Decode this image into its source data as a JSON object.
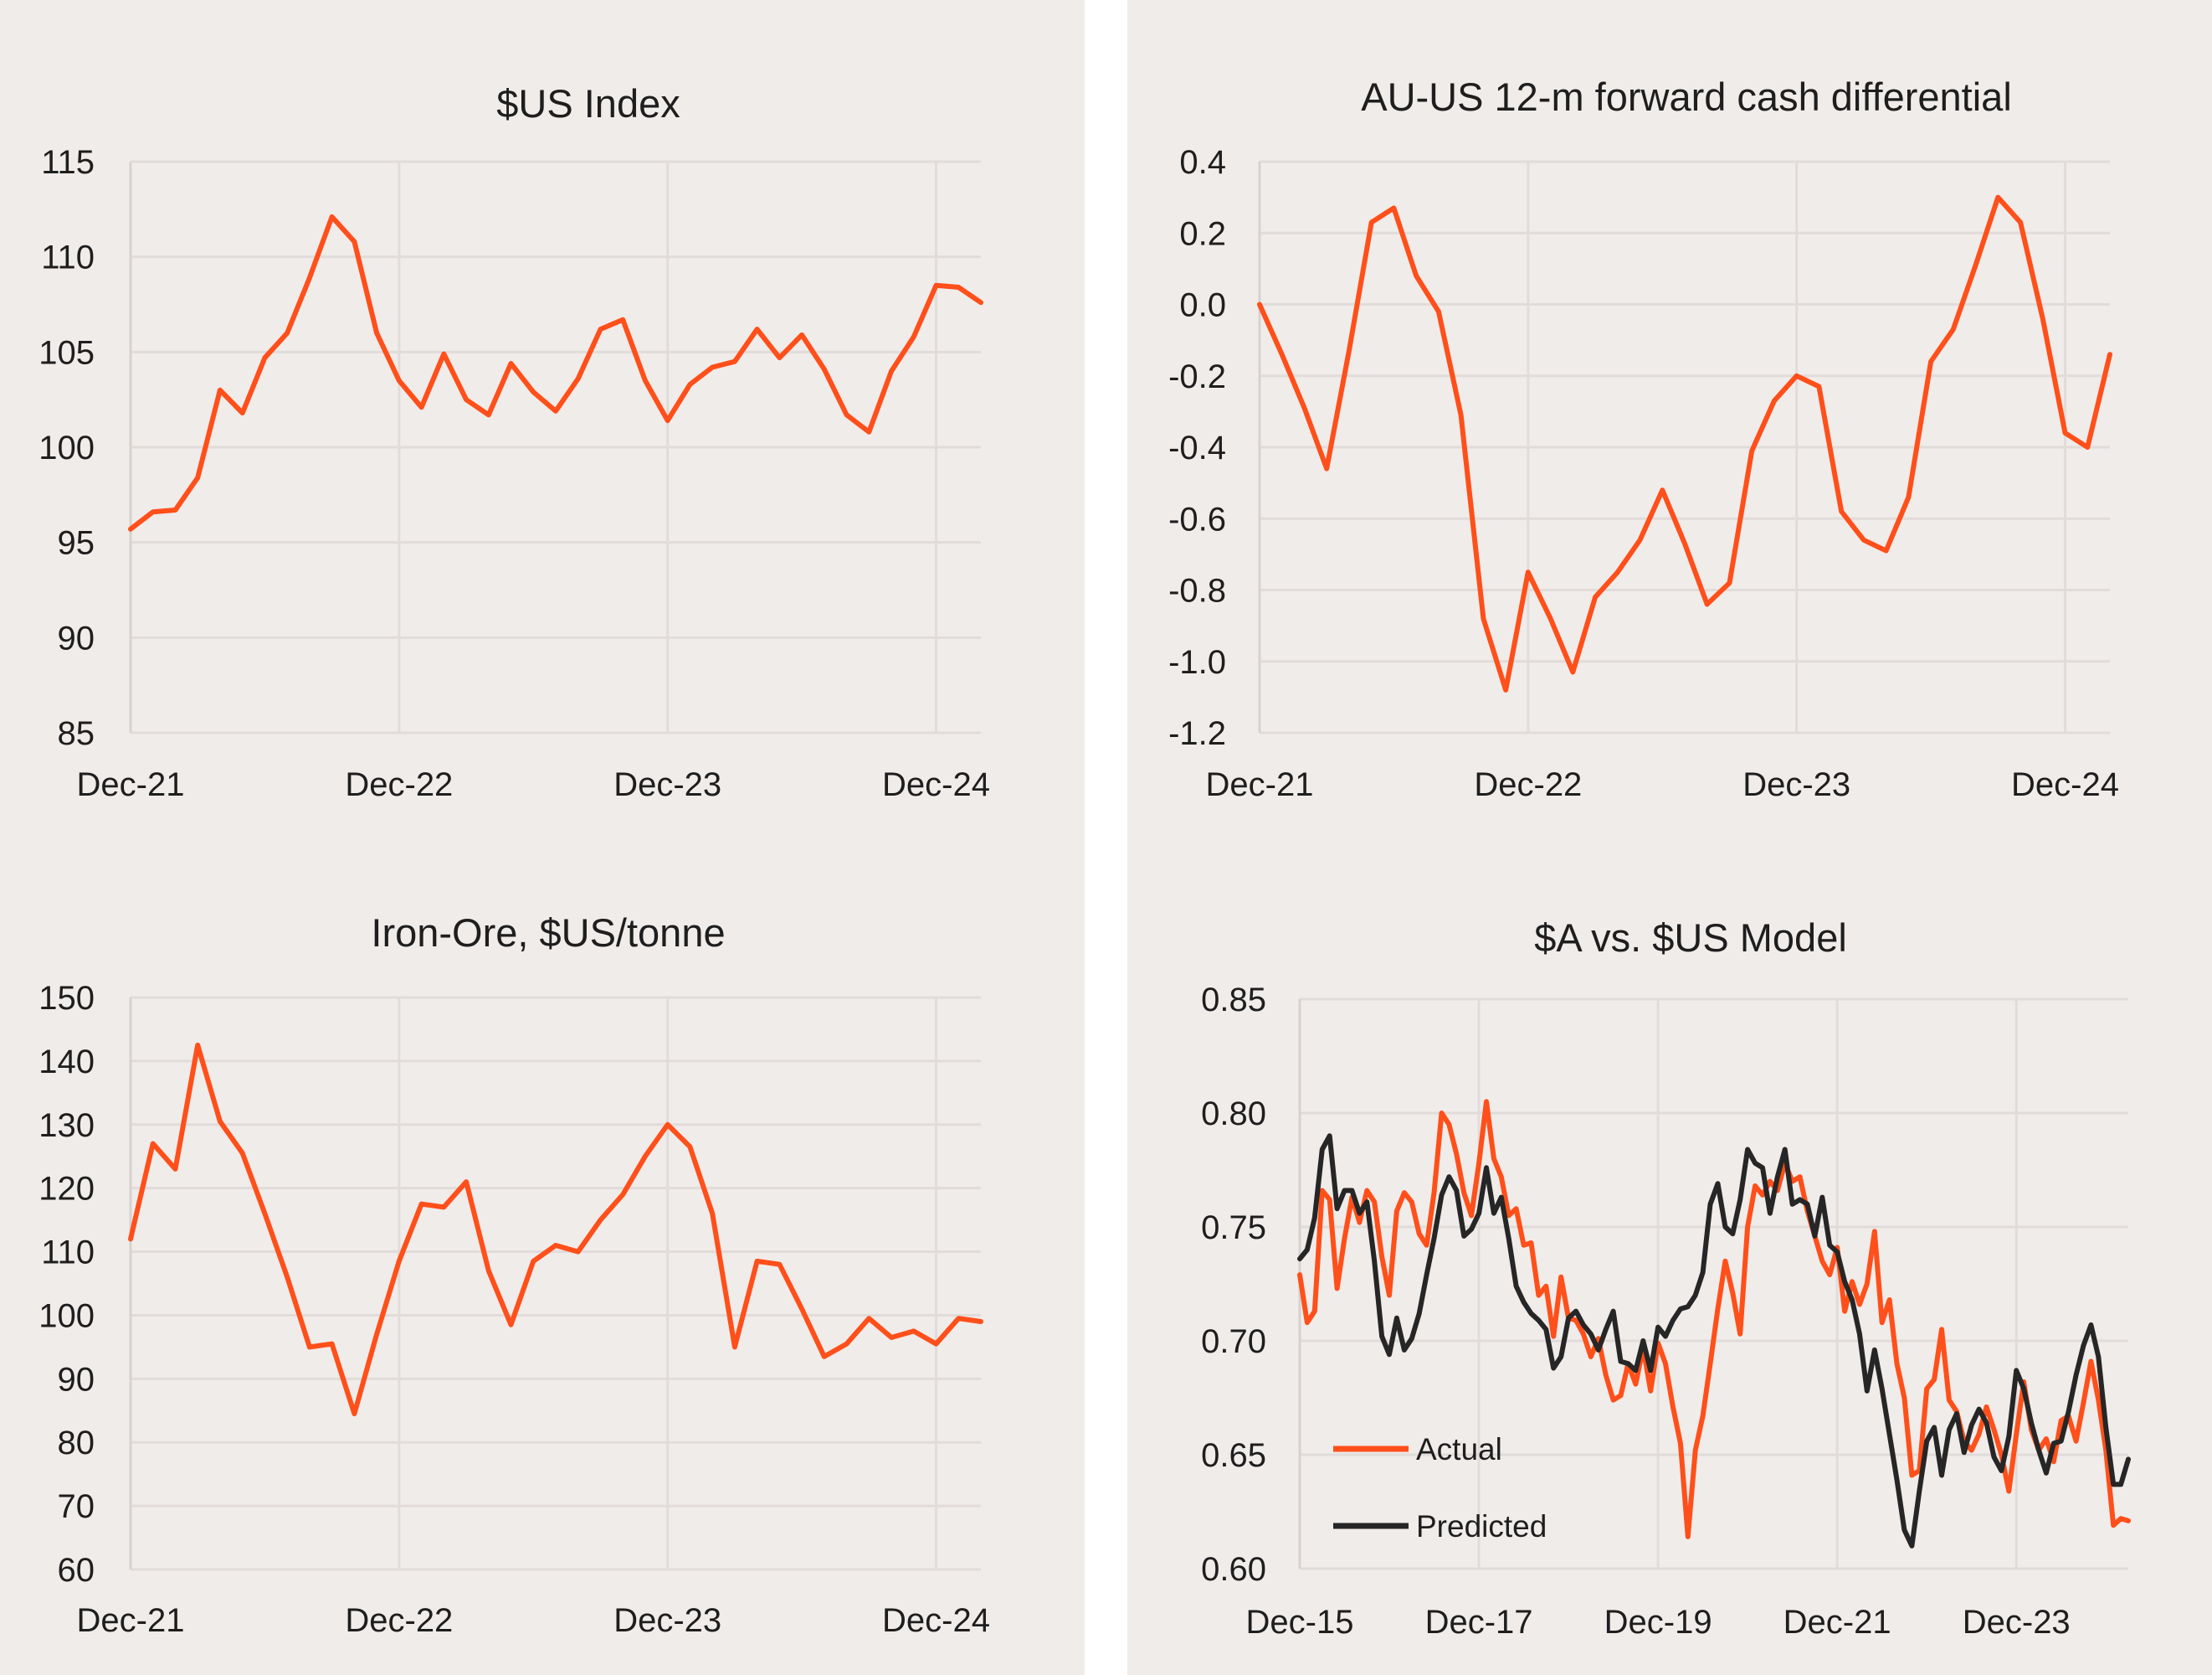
{
  "charts": [
    {
      "id": "usd-index",
      "chart_data": {
        "type": "line",
        "title": "$US Index",
        "xlabel": "",
        "ylabel": "",
        "ylim": [
          85,
          115
        ],
        "yticks": [
          "115",
          "110",
          "105",
          "100",
          "95",
          "90",
          "85"
        ],
        "xticks": [
          "Dec-21",
          "Dec-22",
          "Dec-23",
          "Dec-24"
        ],
        "x_period": "monthly, Dec-21 to Feb-25",
        "grid": true,
        "series": [
          {
            "color": "#ff4f1a",
            "values": [
              95.7,
              96.6,
              96.7,
              98.4,
              103.0,
              101.8,
              104.7,
              106.0,
              108.9,
              112.1,
              110.8,
              106.0,
              103.5,
              102.1,
              104.9,
              102.5,
              101.7,
              104.4,
              102.9,
              101.9,
              103.6,
              106.2,
              106.7,
              103.5,
              101.4,
              103.3,
              104.2,
              104.5,
              106.2,
              104.7,
              105.9,
              104.1,
              101.7,
              100.8,
              104.0,
              105.8,
              108.5,
              108.4,
              107.6
            ]
          }
        ]
      }
    },
    {
      "id": "au-us-differential",
      "chart_data": {
        "type": "line",
        "title": "AU-US 12-m forward cash differential",
        "xlabel": "",
        "ylabel": "",
        "ylim": [
          -1.2,
          0.4
        ],
        "yticks": [
          "0.4",
          "0.2",
          "0.0",
          "-0.2",
          "-0.4",
          "-0.6",
          "-0.8",
          "-1.0",
          "-1.2"
        ],
        "xticks": [
          "Dec-21",
          "Dec-22",
          "Dec-23",
          "Dec-24"
        ],
        "x_period": "monthly, Dec-21 to Feb-25",
        "grid": true,
        "series": [
          {
            "color": "#ff4f1a",
            "values": [
              0.0,
              -0.14,
              -0.29,
              -0.46,
              -0.13,
              0.23,
              0.27,
              0.08,
              -0.02,
              -0.31,
              -0.88,
              -1.08,
              -0.75,
              -0.88,
              -1.03,
              -0.82,
              -0.75,
              -0.66,
              -0.52,
              -0.67,
              -0.84,
              -0.78,
              -0.41,
              -0.27,
              -0.2,
              -0.23,
              -0.58,
              -0.66,
              -0.69,
              -0.54,
              -0.16,
              -0.07,
              0.11,
              0.3,
              0.23,
              -0.04,
              -0.36,
              -0.4,
              -0.14
            ]
          }
        ]
      }
    },
    {
      "id": "iron-ore",
      "chart_data": {
        "type": "line",
        "title": "Iron-Ore, $US/tonne",
        "xlabel": "",
        "ylabel": "",
        "ylim": [
          60,
          150
        ],
        "yticks": [
          "150",
          "140",
          "130",
          "120",
          "110",
          "100",
          "90",
          "80",
          "70",
          "60"
        ],
        "xticks": [
          "Dec-21",
          "Dec-22",
          "Dec-23",
          "Dec-24"
        ],
        "x_period": "monthly, Dec-21 to Feb-25",
        "grid": true,
        "series": [
          {
            "color": "#ff4f1a",
            "values": [
              112.0,
              127.0,
              123.0,
              142.5,
              130.5,
              125.5,
              116.0,
              106.0,
              95.0,
              95.5,
              84.5,
              97.0,
              108.5,
              117.5,
              117.0,
              121.0,
              107.0,
              98.5,
              108.5,
              111.0,
              110.0,
              115.0,
              119.0,
              125.0,
              130.0,
              126.5,
              116.0,
              95.0,
              108.5,
              108.0,
              101.0,
              93.5,
              95.5,
              99.5,
              96.5,
              97.5,
              95.5,
              99.5,
              99.0
            ]
          }
        ]
      }
    },
    {
      "id": "aud-usd-model",
      "chart_data": {
        "type": "line",
        "title": "$A vs. $US Model",
        "xlabel": "",
        "ylabel": "",
        "ylim": [
          0.6,
          0.85
        ],
        "yticks": [
          "0.85",
          "0.80",
          "0.75",
          "0.70",
          "0.65",
          "0.60"
        ],
        "xticks": [
          "Dec-15",
          "Dec-17",
          "Dec-19",
          "Dec-21",
          "Dec-23"
        ],
        "x_period": "monthly, Dec-15 to Feb-25",
        "grid": true,
        "legend": {
          "position": "bottom-left",
          "items": [
            "Actual",
            "Predicted"
          ]
        },
        "series": [
          {
            "name": "Actual",
            "color": "#ff4f1a",
            "values": [
              0.729,
              0.708,
              0.713,
              0.766,
              0.762,
              0.723,
              0.745,
              0.763,
              0.752,
              0.766,
              0.761,
              0.737,
              0.72,
              0.757,
              0.765,
              0.761,
              0.747,
              0.742,
              0.765,
              0.8,
              0.795,
              0.782,
              0.765,
              0.755,
              0.778,
              0.805,
              0.78,
              0.772,
              0.755,
              0.758,
              0.742,
              0.743,
              0.72,
              0.724,
              0.702,
              0.728,
              0.71,
              0.709,
              0.703,
              0.693,
              0.701,
              0.685,
              0.674,
              0.676,
              0.69,
              0.681,
              0.697,
              0.678,
              0.699,
              0.69,
              0.671,
              0.655,
              0.614,
              0.652,
              0.667,
              0.69,
              0.714,
              0.735,
              0.721,
              0.703,
              0.75,
              0.768,
              0.764,
              0.77,
              0.766,
              0.778,
              0.77,
              0.772,
              0.757,
              0.746,
              0.735,
              0.729,
              0.741,
              0.713,
              0.726,
              0.716,
              0.725,
              0.748,
              0.708,
              0.718,
              0.69,
              0.675,
              0.641,
              0.643,
              0.679,
              0.683,
              0.705,
              0.674,
              0.669,
              0.656,
              0.652,
              0.659,
              0.671,
              0.661,
              0.65,
              0.634,
              0.659,
              0.682,
              0.661,
              0.652,
              0.657,
              0.647,
              0.665,
              0.667,
              0.656,
              0.673,
              0.691,
              0.674,
              0.652,
              0.619,
              0.622,
              0.621
            ]
          },
          {
            "name": "Predicted",
            "color": "#262626",
            "values": [
              0.736,
              0.74,
              0.754,
              0.784,
              0.79,
              0.758,
              0.766,
              0.766,
              0.756,
              0.761,
              0.735,
              0.702,
              0.694,
              0.71,
              0.696,
              0.701,
              0.712,
              0.729,
              0.745,
              0.764,
              0.772,
              0.766,
              0.746,
              0.749,
              0.756,
              0.776,
              0.756,
              0.763,
              0.745,
              0.724,
              0.717,
              0.712,
              0.709,
              0.705,
              0.688,
              0.693,
              0.71,
              0.713,
              0.707,
              0.703,
              0.696,
              0.705,
              0.713,
              0.691,
              0.69,
              0.687,
              0.7,
              0.687,
              0.706,
              0.702,
              0.709,
              0.714,
              0.715,
              0.72,
              0.73,
              0.76,
              0.769,
              0.75,
              0.747,
              0.762,
              0.784,
              0.778,
              0.776,
              0.756,
              0.772,
              0.784,
              0.76,
              0.762,
              0.76,
              0.746,
              0.763,
              0.742,
              0.739,
              0.726,
              0.718,
              0.703,
              0.678,
              0.696,
              0.679,
              0.659,
              0.639,
              0.617,
              0.61,
              0.634,
              0.656,
              0.662,
              0.641,
              0.661,
              0.668,
              0.651,
              0.663,
              0.67,
              0.664,
              0.649,
              0.643,
              0.658,
              0.687,
              0.679,
              0.664,
              0.652,
              0.642,
              0.655,
              0.656,
              0.669,
              0.685,
              0.698,
              0.707,
              0.693,
              0.662,
              0.637,
              0.637,
              0.648
            ]
          }
        ]
      }
    }
  ]
}
